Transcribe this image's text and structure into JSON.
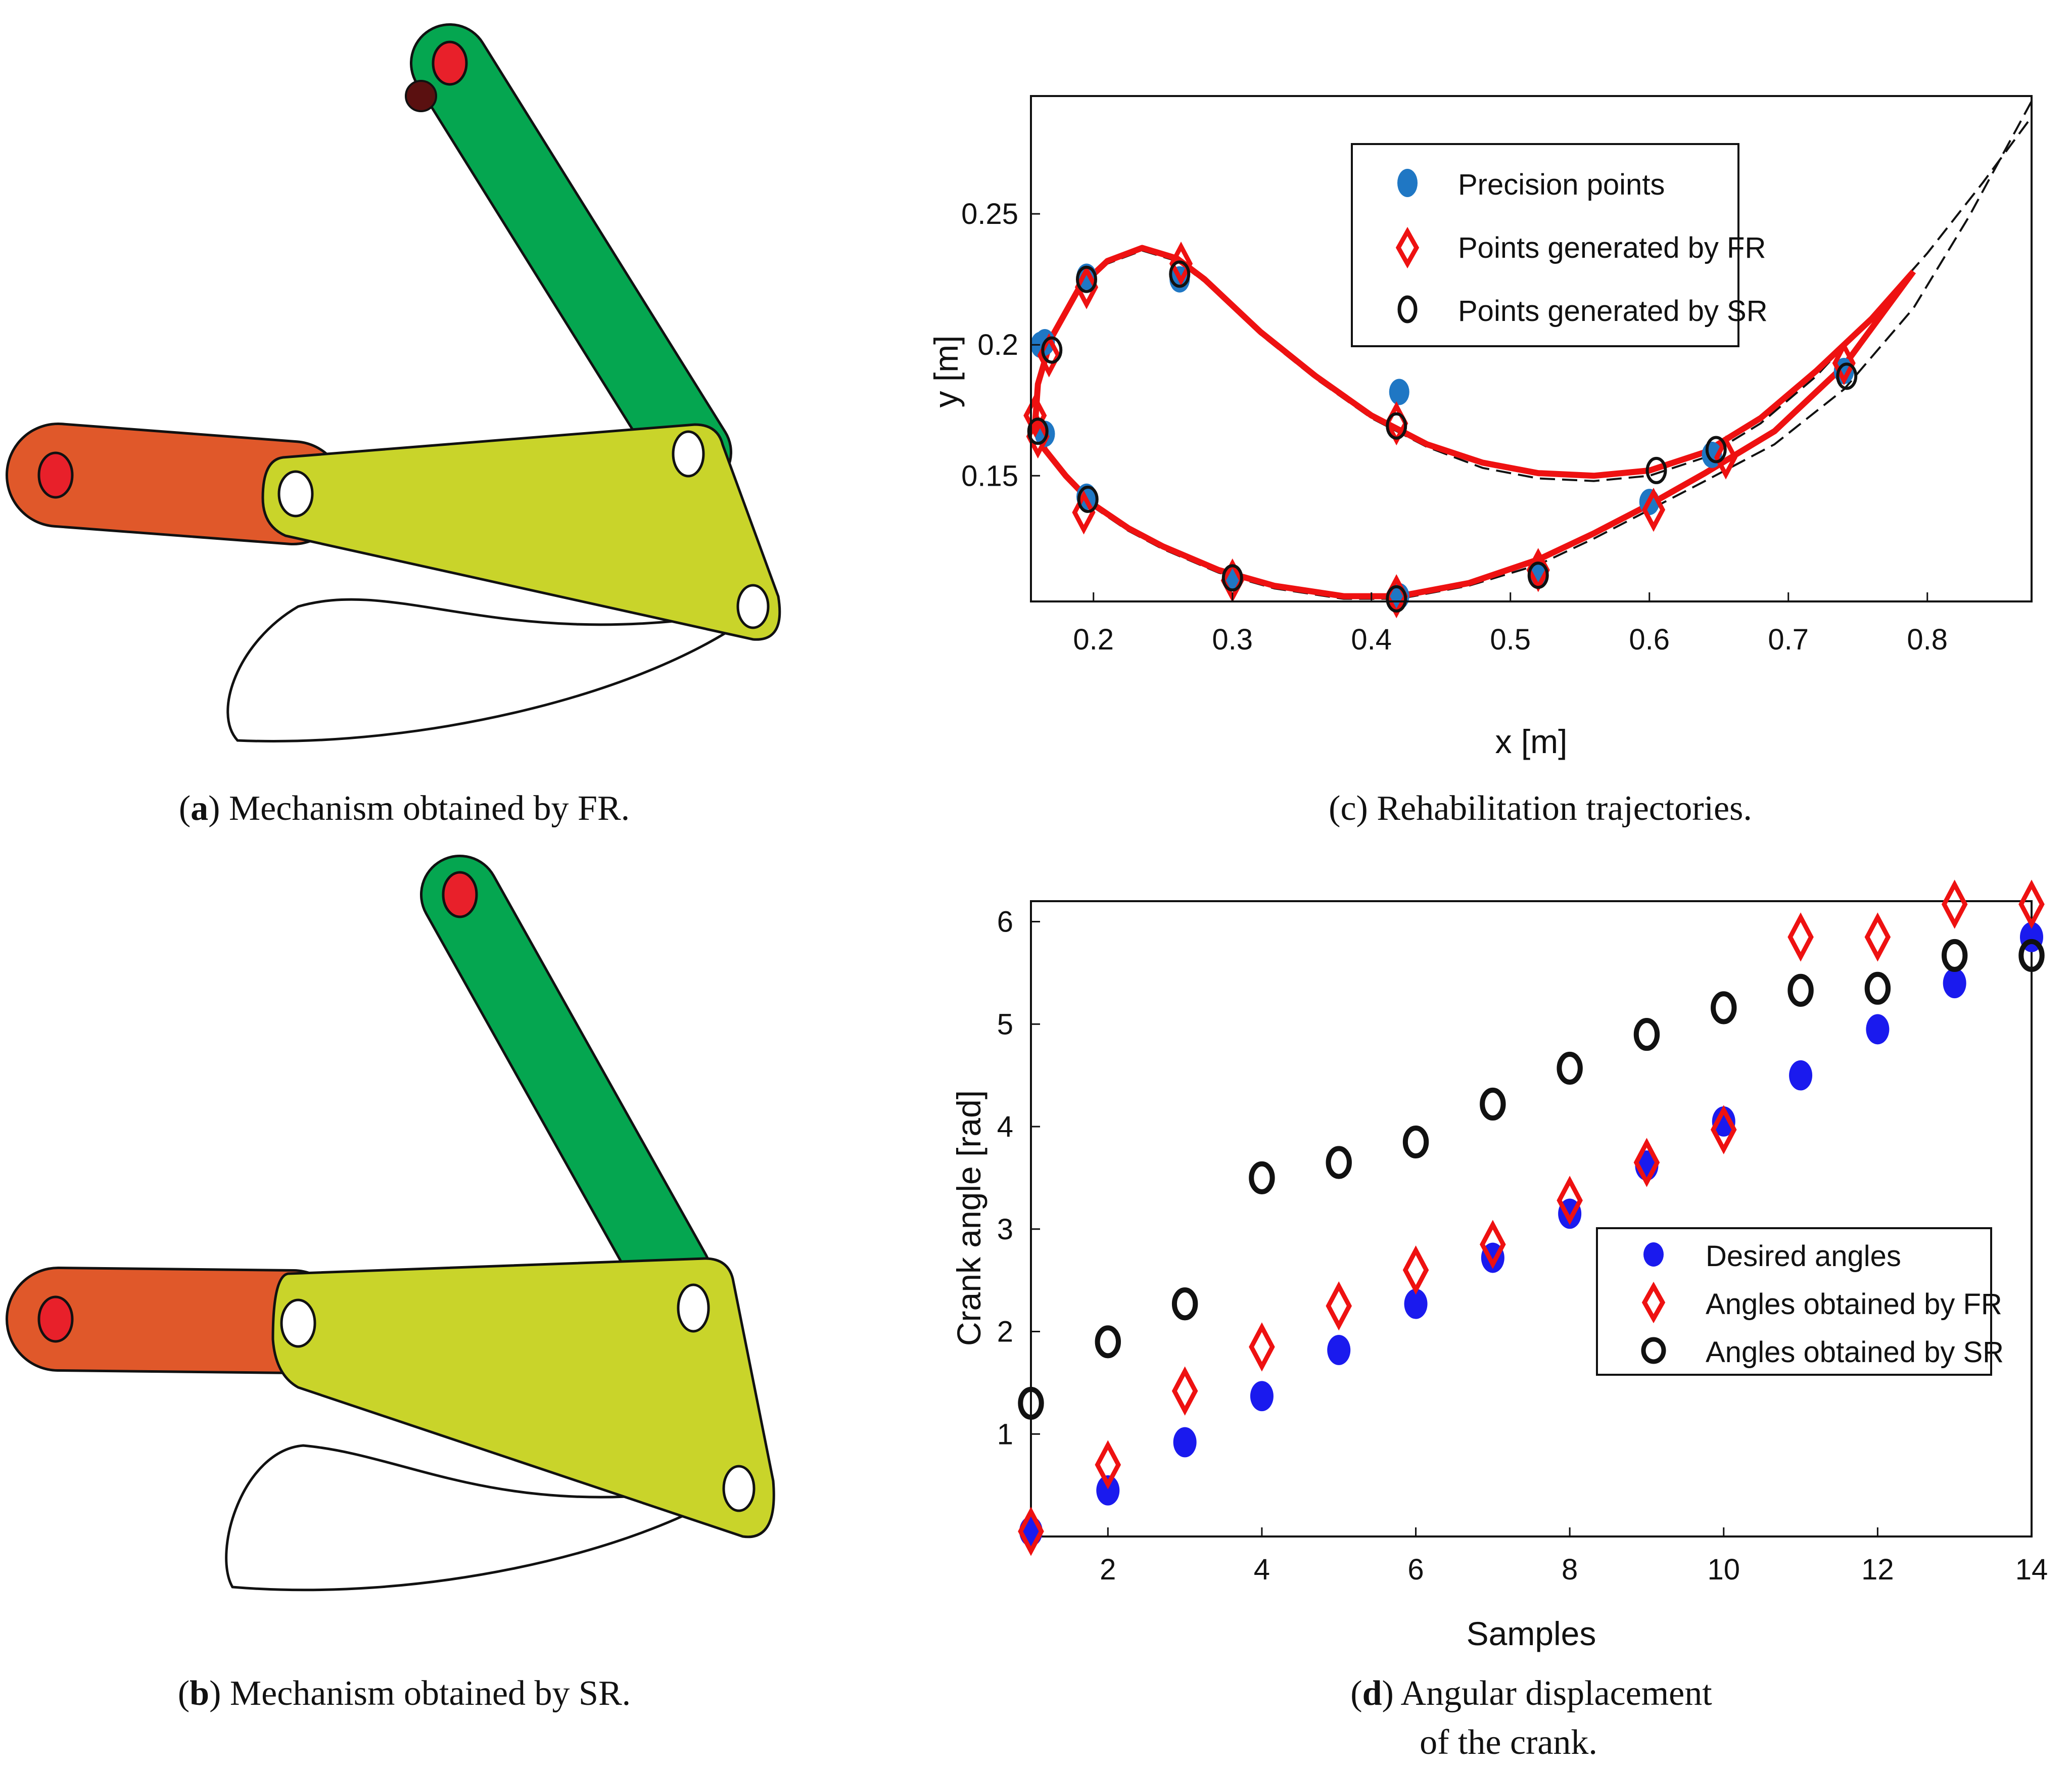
{
  "colors": {
    "crank_orange": "#e0582a",
    "rocker_green": "#05a650",
    "coupler_yellow": "#c9d42a",
    "joint_red": "#e8202a",
    "precision_blue": "#1f77c4",
    "desired_blue": "#1a1aee",
    "fr_red": "#ee1111",
    "sr_black": "#111111"
  },
  "captions": {
    "a": {
      "letter": "a",
      "text": " Mechanism obtained by FR."
    },
    "b": {
      "letter": "b",
      "text": " Mechanism obtained by SR."
    },
    "c": {
      "letter": "c",
      "text": " Rehabilitation trajectories."
    },
    "d": {
      "letter": "d",
      "text": " Angular displacement",
      "line2": "of the crank."
    }
  },
  "chart_data": [
    {
      "id": "c",
      "type": "scatter",
      "xlabel": "x [m]",
      "ylabel": "y [m]",
      "xlim": [
        0.155,
        0.875
      ],
      "ylim": [
        0.102,
        0.295
      ],
      "xticks": [
        0.2,
        0.3,
        0.4,
        0.5,
        0.6,
        0.7,
        0.8
      ],
      "xtick_labels": [
        "0.2",
        "0.3",
        "0.4",
        "0.5",
        "0.6",
        "0.7",
        "0.8"
      ],
      "yticks": [
        0.15,
        0.2,
        0.25
      ],
      "ytick_labels": [
        "0.15",
        "0.2",
        "0.25"
      ],
      "legend": [
        "Precision points",
        "Points generated by FR",
        " Points generated by SR"
      ],
      "legend_position": "top-center",
      "series": [
        {
          "name": "Precision points",
          "marker": "dot",
          "x": [
            0.162,
            0.195,
            0.262,
            0.42,
            0.6,
            0.645,
            0.74,
            0.52,
            0.42,
            0.3,
            0.195,
            0.165,
            0.165
          ],
          "y": [
            0.2,
            0.226,
            0.225,
            0.182,
            0.14,
            0.158,
            0.19,
            0.112,
            0.104,
            0.111,
            0.142,
            0.166,
            0.201
          ]
        },
        {
          "name": "Points generated by FR",
          "marker": "diamond",
          "x": [
            0.168,
            0.195,
            0.263,
            0.418,
            0.603,
            0.655,
            0.74,
            0.52,
            0.418,
            0.3,
            0.193,
            0.16,
            0.158
          ],
          "y": [
            0.196,
            0.222,
            0.231,
            0.17,
            0.137,
            0.157,
            0.193,
            0.114,
            0.104,
            0.11,
            0.136,
            0.165,
            0.173
          ]
        },
        {
          "name": " Points generated by SR",
          "marker": "circle",
          "x": [
            0.17,
            0.195,
            0.262,
            0.418,
            0.605,
            0.648,
            0.742,
            0.52,
            0.418,
            0.3,
            0.196,
            0.16
          ],
          "y": [
            0.198,
            0.225,
            0.227,
            0.169,
            0.152,
            0.16,
            0.188,
            0.112,
            0.103,
            0.111,
            0.141,
            0.167
          ]
        }
      ],
      "curves": [
        {
          "name": "FR trajectory",
          "style": "solid",
          "x": [
            0.79,
            0.74,
            0.69,
            0.64,
            0.6,
            0.56,
            0.52,
            0.47,
            0.42,
            0.38,
            0.33,
            0.29,
            0.25,
            0.225,
            0.2,
            0.18,
            0.165,
            0.158,
            0.16,
            0.17,
            0.19,
            0.21,
            0.235,
            0.26,
            0.28,
            0.32,
            0.36,
            0.4,
            0.44,
            0.48,
            0.52,
            0.56,
            0.6,
            0.64,
            0.68,
            0.72,
            0.76,
            0.79
          ],
          "y": [
            0.228,
            0.192,
            0.167,
            0.151,
            0.139,
            0.128,
            0.118,
            0.109,
            0.104,
            0.104,
            0.108,
            0.114,
            0.123,
            0.13,
            0.139,
            0.15,
            0.16,
            0.17,
            0.185,
            0.203,
            0.222,
            0.232,
            0.237,
            0.233,
            0.225,
            0.205,
            0.188,
            0.173,
            0.162,
            0.155,
            0.151,
            0.15,
            0.152,
            0.159,
            0.172,
            0.19,
            0.21,
            0.228
          ]
        },
        {
          "name": "SR trajectory",
          "style": "dashed",
          "x": [
            0.875,
            0.83,
            0.79,
            0.74,
            0.69,
            0.64,
            0.6,
            0.56,
            0.52,
            0.47,
            0.42,
            0.38,
            0.33,
            0.29,
            0.25,
            0.225,
            0.2,
            0.18,
            0.165,
            0.158,
            0.16,
            0.17,
            0.19,
            0.21,
            0.235,
            0.26,
            0.28,
            0.32,
            0.36,
            0.4,
            0.44,
            0.48,
            0.52,
            0.56,
            0.6,
            0.64,
            0.68,
            0.72,
            0.76,
            0.8,
            0.84,
            0.875
          ],
          "y": [
            0.293,
            0.249,
            0.214,
            0.183,
            0.162,
            0.148,
            0.137,
            0.126,
            0.116,
            0.108,
            0.103,
            0.103,
            0.107,
            0.113,
            0.122,
            0.129,
            0.138,
            0.149,
            0.159,
            0.169,
            0.184,
            0.202,
            0.221,
            0.231,
            0.236,
            0.232,
            0.224,
            0.204,
            0.187,
            0.172,
            0.161,
            0.153,
            0.149,
            0.148,
            0.15,
            0.157,
            0.17,
            0.188,
            0.211,
            0.235,
            0.262,
            0.287
          ]
        }
      ]
    },
    {
      "id": "d",
      "type": "scatter",
      "xlabel": "Samples",
      "ylabel": "Crank angle [rad]",
      "xlim": [
        1,
        14
      ],
      "ylim": [
        0,
        6.2
      ],
      "xticks": [
        2,
        4,
        6,
        8,
        10,
        12,
        14
      ],
      "xtick_labels": [
        "2",
        "4",
        "6",
        "8",
        "10",
        "12",
        "14"
      ],
      "yticks": [
        1,
        2,
        3,
        4,
        5,
        6
      ],
      "ytick_labels": [
        "1",
        "2",
        "3",
        "4",
        "5",
        "6"
      ],
      "legend": [
        "Desired angles",
        "Angles obtained by FR",
        " Angles obtained by SR"
      ],
      "legend_position": "lower-right",
      "x": [
        1,
        2,
        3,
        4,
        5,
        6,
        7,
        8,
        9,
        10,
        11,
        12,
        13,
        14
      ],
      "series": [
        {
          "name": "Desired angles",
          "marker": "dot",
          "values": [
            0.05,
            0.45,
            0.92,
            1.37,
            1.82,
            2.27,
            2.72,
            3.15,
            3.62,
            4.05,
            4.5,
            4.95,
            5.4,
            5.85
          ]
        },
        {
          "name": "Angles obtained by FR",
          "marker": "diamond",
          "values": [
            0.05,
            0.7,
            1.42,
            1.85,
            2.25,
            2.6,
            2.85,
            3.28,
            3.65,
            3.97,
            5.85,
            5.85,
            6.17,
            6.17
          ]
        },
        {
          "name": " Angles obtained by SR",
          "marker": "circle",
          "values": [
            1.3,
            1.9,
            2.27,
            3.5,
            3.65,
            3.85,
            4.22,
            4.57,
            4.9,
            5.16,
            5.33,
            5.35,
            5.67,
            5.67
          ]
        }
      ]
    }
  ]
}
